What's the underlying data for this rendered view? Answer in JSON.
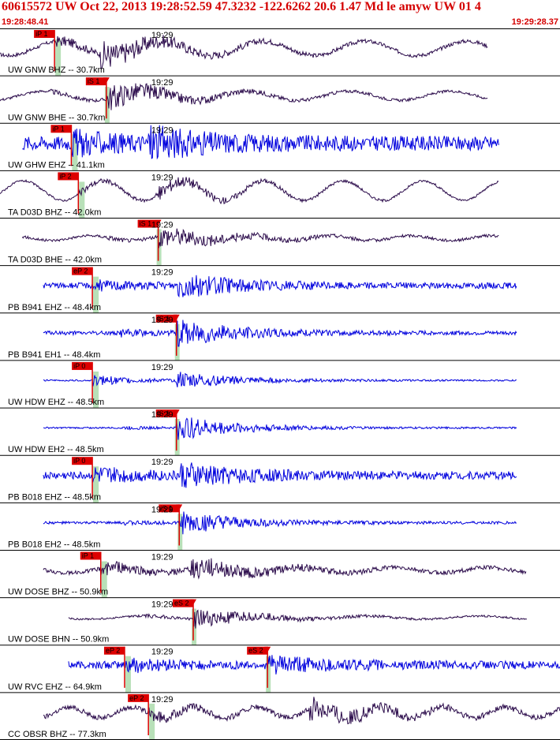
{
  "header": {
    "title": "60615572 UW Oct 22, 2013 19:28:52.59    47.3232 -122.6262 20.6 1.47 Md le amyw UW 01    4",
    "start_time": "19:28:48.41",
    "end_time": "19:29:28.37"
  },
  "chart_data": {
    "type": "line",
    "title": "60615572 UW Oct 22, 2013 19:28:52.59    47.3232 -122.6262 20.6 1.47 Md le amyw UW 01    4",
    "time_range": [
      "19:28:48.41",
      "19:29:28.37"
    ],
    "time_range_seconds": [
      48.41,
      88.37
    ],
    "grid": false,
    "colors": {
      "broadband": "#2a0a4a",
      "short_period": "#0000dd",
      "pick": "#dd0000",
      "pick_window": "#b8e0b8"
    },
    "traces": [
      {
        "label": "UW GNW BHZ -- 30.7km",
        "tick": "19:29",
        "tick_t": 60.0,
        "pick": "iP 1",
        "pick_t": 52.3,
        "s_pick": "",
        "s_pick_t": null,
        "color": "broadband",
        "t_start": 48.41,
        "t_end": 83.2,
        "p_amp": 0.32,
        "noise": 0.14,
        "wave": 0.55,
        "wave_n": 5.5,
        "coda": 0.9,
        "s_arr": 55.6
      },
      {
        "label": "UW GNW BHE -- 30.7km",
        "tick": "19:29",
        "tick_t": 60.0,
        "pick": "",
        "pick_t": null,
        "s_pick": "iS 1",
        "s_pick_t": 56.0,
        "color": "broadband",
        "t_start": 48.41,
        "t_end": 83.2,
        "p_amp": 0.1,
        "noise": 0.1,
        "wave": 0.35,
        "wave_n": 5.5,
        "coda": 0.95,
        "s_arr": 56.0
      },
      {
        "label": "UW GHW EHZ -- 41.1km",
        "tick": "19:29",
        "tick_t": 60.0,
        "pick": "iP 1",
        "pick_t": 53.5,
        "s_pick": "",
        "s_pick_t": null,
        "color": "short_period",
        "t_start": 50.0,
        "t_end": 84.0,
        "p_amp": 0.7,
        "noise": 0.55,
        "wave": 0.0,
        "wave_n": 0.0,
        "coda": 0.9,
        "s_arr": 59.0
      },
      {
        "label": "TA D03D BHZ -- 42.0km",
        "tick": "19:29",
        "tick_t": 60.0,
        "pick": "iP 2",
        "pick_t": 54.0,
        "s_pick": "",
        "s_pick_t": null,
        "color": "broadband",
        "t_start": 48.41,
        "t_end": 84.0,
        "p_amp": 0.2,
        "noise": 0.08,
        "wave": 0.75,
        "wave_n": 7.0,
        "coda": 0.5,
        "s_arr": 59.5
      },
      {
        "label": "TA D03D BHE -- 42.0km",
        "tick": "19:29",
        "tick_t": 60.0,
        "pick": "",
        "pick_t": null,
        "s_pick": "iS 1",
        "s_pick_t": 59.7,
        "color": "broadband",
        "t_start": 50.0,
        "t_end": 84.0,
        "p_amp": 0.1,
        "noise": 0.1,
        "wave": 0.18,
        "wave_n": 7.0,
        "coda": 0.75,
        "s_arr": 59.7
      },
      {
        "label": "PB B941 EHZ -- 48.4km",
        "tick": "19:29",
        "tick_t": 60.0,
        "pick": "eP 2",
        "pick_t": 55.0,
        "s_pick": "",
        "s_pick_t": null,
        "color": "short_period",
        "t_start": 51.5,
        "t_end": 85.3,
        "p_amp": 0.3,
        "noise": 0.22,
        "wave": 0.0,
        "wave_n": 0.0,
        "coda": 0.85,
        "s_arr": 61.0
      },
      {
        "label": "PB B941 EH1 -- 48.4km",
        "tick": "19:29",
        "tick_t": 60.0,
        "pick": "",
        "pick_t": null,
        "s_pick": "iS 1",
        "s_pick_t": 61.0,
        "color": "short_period",
        "t_start": 51.5,
        "t_end": 85.3,
        "p_amp": 0.2,
        "noise": 0.15,
        "wave": 0.0,
        "wave_n": 0.0,
        "coda": 0.9,
        "s_arr": 61.0
      },
      {
        "label": "UW HDW EHZ -- 48.5km",
        "tick": "19:29",
        "tick_t": 60.0,
        "pick": "iP 0",
        "pick_t": 55.0,
        "s_pick": "",
        "s_pick_t": null,
        "color": "short_period",
        "t_start": 51.5,
        "t_end": 85.3,
        "p_amp": 0.4,
        "noise": 0.06,
        "wave": 0.0,
        "wave_n": 0.0,
        "coda": 0.6,
        "s_arr": 61.0
      },
      {
        "label": "UW HDW EH2 -- 48.5km",
        "tick": "19:29",
        "tick_t": 60.0,
        "pick": "",
        "pick_t": null,
        "s_pick": "iS 1",
        "s_pick_t": 61.0,
        "color": "short_period",
        "t_start": 51.5,
        "t_end": 85.3,
        "p_amp": 0.1,
        "noise": 0.06,
        "wave": 0.0,
        "wave_n": 0.0,
        "coda": 0.9,
        "s_arr": 61.0
      },
      {
        "label": "PB B018 EHZ -- 48.5km",
        "tick": "19:29",
        "tick_t": 60.0,
        "pick": "iP 0",
        "pick_t": 55.0,
        "s_pick": "",
        "s_pick_t": null,
        "color": "short_period",
        "t_start": 51.5,
        "t_end": 85.3,
        "p_amp": 0.55,
        "noise": 0.3,
        "wave": 0.0,
        "wave_n": 0.0,
        "coda": 0.8,
        "s_arr": 61.2
      },
      {
        "label": "PB B018 EH2 -- 48.5km",
        "tick": "19:29",
        "tick_t": 60.0,
        "pick": "",
        "pick_t": null,
        "s_pick": "iS 1",
        "s_pick_t": 61.2,
        "color": "short_period",
        "t_start": 51.5,
        "t_end": 85.3,
        "p_amp": 0.1,
        "noise": 0.1,
        "wave": 0.0,
        "wave_n": 0.0,
        "coda": 0.85,
        "s_arr": 61.2
      },
      {
        "label": "UW DOSE BHZ -- 50.9km",
        "tick": "19:29",
        "tick_t": 60.0,
        "pick": "iP 1",
        "pick_t": 55.6,
        "s_pick": "",
        "s_pick_t": null,
        "color": "broadband",
        "t_start": 51.5,
        "t_end": 86.0,
        "p_amp": 0.5,
        "noise": 0.15,
        "wave": 0.2,
        "wave_n": 6.0,
        "coda": 0.75,
        "s_arr": 62.0
      },
      {
        "label": "UW DOSE BHN -- 50.9km",
        "tick": "19:29",
        "tick_t": 60.0,
        "pick": "",
        "pick_t": null,
        "s_pick": "eS 2",
        "s_pick_t": 62.2,
        "color": "broadband",
        "t_start": 53.3,
        "t_end": 86.0,
        "p_amp": 0.12,
        "noise": 0.07,
        "wave": 0.12,
        "wave_n": 5.0,
        "coda": 0.7,
        "s_arr": 62.2
      },
      {
        "label": "UW RVC EHZ -- 64.9km",
        "tick": "19:29",
        "tick_t": 60.0,
        "pick": "eP 2",
        "pick_t": 57.3,
        "s_pick": "eS 2",
        "s_pick_t": 67.5,
        "color": "short_period",
        "t_start": 53.3,
        "t_end": 88.37,
        "p_amp": 0.45,
        "noise": 0.3,
        "wave": 0.0,
        "wave_n": 0.0,
        "coda": 0.55,
        "s_arr": 67.5
      },
      {
        "label": "CC OBSR BHZ -- 77.3km",
        "tick": "19:29",
        "tick_t": 60.0,
        "pick": "eP 2",
        "pick_t": 59.0,
        "s_pick": "",
        "s_pick_t": null,
        "color": "broadband",
        "t_start": 51.5,
        "t_end": 88.37,
        "p_amp": 0.35,
        "noise": 0.18,
        "wave": 0.4,
        "wave_n": 9.0,
        "coda": 0.8,
        "s_arr": 70.5
      }
    ]
  }
}
